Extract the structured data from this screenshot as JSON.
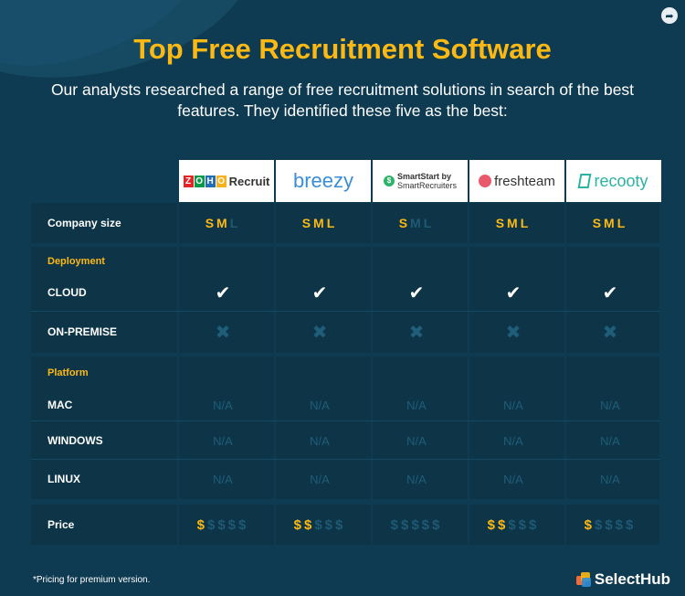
{
  "title": "Top Free Recruitment Software",
  "subtitle_line1": "Our analysts researched a range of free recruitment solutions in  search of the best",
  "subtitle_line2": "features. They identified these five as the best:",
  "vendors": [
    "Zoho Recruit",
    "breezy",
    "SmartStart by SmartRecruiters",
    "freshteam",
    "recooty"
  ],
  "logo_text": {
    "zoho_letters": [
      "Z",
      "O",
      "H",
      "O"
    ],
    "zoho_word": "Recruit",
    "breezy": "breezy",
    "smart_line1": "SmartStart by",
    "smart_line2": "SmartRecruiters",
    "fresh": "freshteam",
    "recooty": "recooty"
  },
  "rows": {
    "company_size": "Company size",
    "deployment": "Deployment",
    "cloud": "CLOUD",
    "on_premise": "ON-PREMISE",
    "platform": "Platform",
    "mac": "MAC",
    "windows": "WINDOWS",
    "linux": "LINUX",
    "price": "Price"
  },
  "company_size": [
    {
      "S": true,
      "M": true,
      "L": false
    },
    {
      "S": true,
      "M": true,
      "L": true
    },
    {
      "S": true,
      "M": false,
      "L": false
    },
    {
      "S": true,
      "M": true,
      "L": true
    },
    {
      "S": true,
      "M": true,
      "L": true
    }
  ],
  "cloud": [
    true,
    true,
    true,
    true,
    true
  ],
  "on_premise": [
    false,
    false,
    false,
    false,
    false
  ],
  "na_text": "N/A",
  "price_level": [
    1,
    2,
    0,
    2,
    1
  ],
  "price_symbol": "$",
  "footnote": "*Pricing for premium version.",
  "brand": "SelectHub",
  "colors": {
    "background": "#0f3b52",
    "accent": "#fdb913",
    "inactive": "#1e5a75"
  }
}
